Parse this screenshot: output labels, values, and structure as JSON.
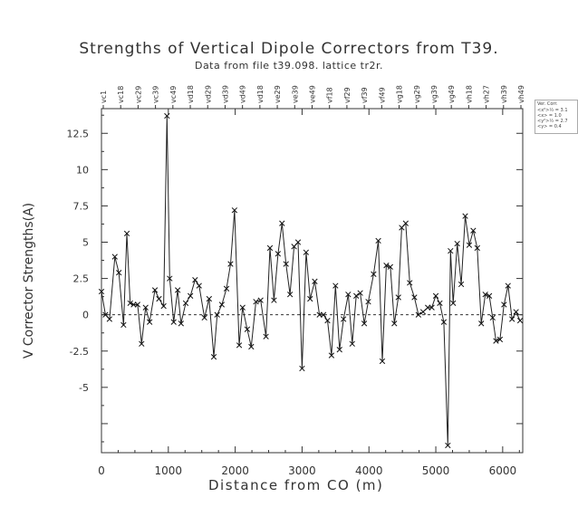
{
  "chart_data": {
    "type": "line",
    "title": "Strengths of Vertical Dipole Correctors from T39.",
    "subtitle": "Data from file t39.098. lattice tr2r.",
    "xlabel": "Distance from CO (m)",
    "ylabel": "V Corrector Strengths(A)",
    "xlim": [
      0,
      6300
    ],
    "ylim": [
      -9.5,
      14.2
    ],
    "xticks": [
      0,
      1000,
      2000,
      3000,
      4000,
      5000,
      6000
    ],
    "yticks": [
      -7.5,
      -5,
      -2.5,
      0,
      2.5,
      5,
      7.5,
      10,
      12.5
    ],
    "ytick_labels": [
      "",
      "-5",
      "-2.5",
      "0",
      "2.5",
      "5",
      "7.5",
      "10",
      "12.5"
    ],
    "grid": false,
    "zero_line": "dashed",
    "marker": "x",
    "top_labels": [
      "vc1",
      "vc18",
      "vc29",
      "vc39",
      "vc49",
      "vd18",
      "vd29",
      "vd39",
      "vd49",
      "vd18",
      "ve29",
      "ve39",
      "ve49",
      "vf18",
      "vf29",
      "vf39",
      "vf49",
      "vg18",
      "vg29",
      "vg39",
      "vg49",
      "vh18",
      "vh27",
      "vh39",
      "vh49"
    ],
    "legend": {
      "title": "Ver. Corr.",
      "rows": [
        "<x²>½ = 3.1",
        "<x>  = 1.0",
        "<y²>½ = 2.7",
        "<y>  = 0.4"
      ]
    },
    "series": [
      {
        "x": [
          0,
          60,
          120,
          200,
          260,
          330,
          380,
          430,
          480,
          540,
          600,
          660,
          720,
          800,
          860,
          930,
          980,
          1020,
          1080,
          1140,
          1190,
          1260,
          1330,
          1400,
          1460,
          1540,
          1610,
          1680,
          1730,
          1800,
          1870,
          1930,
          1990,
          2060,
          2110,
          2180,
          2240,
          2310,
          2380,
          2460,
          2520,
          2580,
          2640,
          2700,
          2760,
          2820,
          2880,
          2940,
          3000,
          3060,
          3120,
          3190,
          3260,
          3320,
          3380,
          3440,
          3500,
          3560,
          3620,
          3690,
          3750,
          3810,
          3870,
          3930,
          3990,
          4070,
          4140,
          4200,
          4260,
          4320,
          4380,
          4440,
          4490,
          4550,
          4610,
          4680,
          4740,
          4810,
          4880,
          4940,
          5000,
          5060,
          5120,
          5180,
          5220,
          5260,
          5320,
          5380,
          5440,
          5500,
          5560,
          5620,
          5680,
          5740,
          5800,
          5850,
          5900,
          5960,
          6020,
          6080,
          6140,
          6200,
          6260
        ],
        "y": [
          1.6,
          0.0,
          -0.3,
          4.0,
          2.9,
          -0.7,
          5.6,
          0.8,
          0.7,
          0.7,
          -2.0,
          0.5,
          -0.5,
          1.7,
          1.1,
          0.6,
          13.7,
          2.5,
          -0.5,
          1.7,
          -0.6,
          0.8,
          1.3,
          2.4,
          2.0,
          -0.2,
          1.1,
          -2.9,
          0.0,
          0.7,
          1.8,
          3.5,
          7.2,
          -2.1,
          0.5,
          -1.0,
          -2.2,
          0.9,
          1.0,
          -1.5,
          4.6,
          1.0,
          4.2,
          6.3,
          3.5,
          1.4,
          4.7,
          5.0,
          -3.7,
          4.3,
          1.1,
          2.3,
          0.0,
          0.0,
          -0.4,
          -2.8,
          2.0,
          -2.4,
          -0.3,
          1.4,
          -2.0,
          1.3,
          1.5,
          -0.6,
          0.9,
          2.8,
          5.1,
          -3.2,
          3.4,
          3.3,
          -0.6,
          1.2,
          6.0,
          6.3,
          2.2,
          1.2,
          0.0,
          0.2,
          0.5,
          0.5,
          1.3,
          0.8,
          -0.5,
          -9.0,
          4.4,
          0.8,
          4.9,
          2.1,
          6.8,
          4.8,
          5.8,
          4.6,
          -0.6,
          1.4,
          1.3,
          -0.2,
          -1.8,
          -1.7,
          0.7,
          2.0,
          -0.3,
          0.2,
          -0.4
        ]
      }
    ]
  }
}
